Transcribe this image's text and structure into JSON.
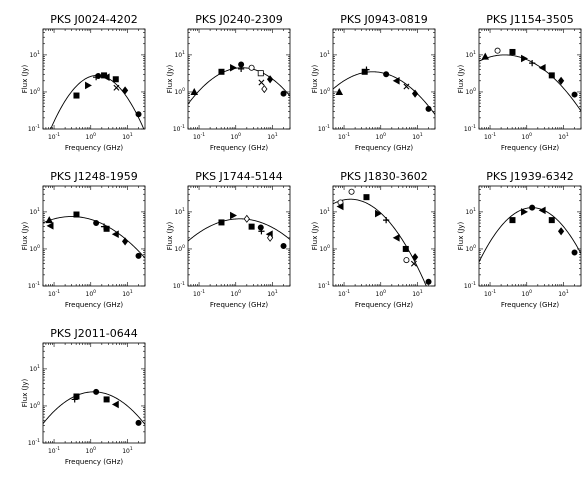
{
  "figure": {
    "xlabel": "Frequency (GHz)",
    "ylabel": "Flux (Jy)"
  },
  "chart_data": [
    {
      "type": "scatter",
      "title": "PKS J0024-4202",
      "xlabel": "Frequency (GHz)",
      "ylabel": "Flux (Jy)",
      "xscale": "log",
      "yscale": "log",
      "xlim": [
        0.05,
        30
      ],
      "ylim": [
        0.1,
        50
      ],
      "xticks": [
        "10^-1",
        "10^0",
        "10^1"
      ],
      "yticks": [
        "10^-1",
        "10^0",
        "10^1"
      ],
      "points": [
        {
          "x": 0.408,
          "y": 0.8,
          "marker": "square"
        },
        {
          "x": 0.843,
          "y": 1.5,
          "marker": "triangle-right"
        },
        {
          "x": 1.4,
          "y": 2.5,
          "marker": "plus"
        },
        {
          "x": 1.6,
          "y": 2.7,
          "marker": "circle"
        },
        {
          "x": 2.3,
          "y": 2.8,
          "marker": "square"
        },
        {
          "x": 2.7,
          "y": 2.5,
          "marker": "triangle-left"
        },
        {
          "x": 4.8,
          "y": 2.2,
          "marker": "square"
        },
        {
          "x": 5.0,
          "y": 1.3,
          "marker": "cross"
        },
        {
          "x": 8.6,
          "y": 1.1,
          "marker": "diamond"
        },
        {
          "x": 20,
          "y": 0.25,
          "marker": "circle"
        }
      ],
      "fit": {
        "peak_freq": 1.5,
        "peak_flux": 2.8,
        "curvature": 0.9
      }
    },
    {
      "type": "scatter",
      "title": "PKS J0240-2309",
      "xlabel": "Frequency (GHz)",
      "ylabel": "Flux (Jy)",
      "xscale": "log",
      "yscale": "log",
      "xlim": [
        0.05,
        30
      ],
      "ylim": [
        0.1,
        50
      ],
      "xticks": [
        "10^-1",
        "10^0",
        "10^1"
      ],
      "yticks": [
        "10^-1",
        "10^0",
        "10^1"
      ],
      "points": [
        {
          "x": 0.074,
          "y": 1.0,
          "marker": "triangle-up"
        },
        {
          "x": 0.408,
          "y": 3.5,
          "marker": "square"
        },
        {
          "x": 0.843,
          "y": 4.5,
          "marker": "triangle-right"
        },
        {
          "x": 1.4,
          "y": 5.5,
          "marker": "circle"
        },
        {
          "x": 1.4,
          "y": 4.2,
          "marker": "plus"
        },
        {
          "x": 2.7,
          "y": 4.5,
          "marker": "open-circle"
        },
        {
          "x": 4.8,
          "y": 3.2,
          "marker": "open-square"
        },
        {
          "x": 5.0,
          "y": 1.8,
          "marker": "cross"
        },
        {
          "x": 6.0,
          "y": 1.2,
          "marker": "open-diamond"
        },
        {
          "x": 8.6,
          "y": 2.2,
          "marker": "diamond"
        },
        {
          "x": 20,
          "y": 0.9,
          "marker": "circle"
        }
      ],
      "fit": {
        "peak_freq": 1.5,
        "peak_flux": 4.5,
        "curvature": 0.45
      }
    },
    {
      "type": "scatter",
      "title": "PKS J0943-0819",
      "xlabel": "Frequency (GHz)",
      "ylabel": "Flux (Jy)",
      "xscale": "log",
      "yscale": "log",
      "xlim": [
        0.05,
        30
      ],
      "ylim": [
        0.1,
        50
      ],
      "xticks": [
        "10^-1",
        "10^0",
        "10^1"
      ],
      "yticks": [
        "10^-1",
        "10^0",
        "10^1"
      ],
      "points": [
        {
          "x": 0.074,
          "y": 1.0,
          "marker": "triangle-up"
        },
        {
          "x": 0.365,
          "y": 3.5,
          "marker": "square"
        },
        {
          "x": 0.408,
          "y": 4.0,
          "marker": "plus"
        },
        {
          "x": 1.4,
          "y": 3.0,
          "marker": "circle"
        },
        {
          "x": 2.7,
          "y": 2.0,
          "marker": "triangle-left"
        },
        {
          "x": 5.0,
          "y": 1.4,
          "marker": "cross"
        },
        {
          "x": 8.6,
          "y": 0.9,
          "marker": "diamond"
        },
        {
          "x": 20,
          "y": 0.35,
          "marker": "circle"
        }
      ],
      "fit": {
        "peak_freq": 0.6,
        "peak_flux": 3.5,
        "curvature": 0.4
      }
    },
    {
      "type": "scatter",
      "title": "PKS J1154-3505",
      "xlabel": "Frequency (GHz)",
      "ylabel": "Flux (Jy)",
      "xscale": "log",
      "yscale": "log",
      "xlim": [
        0.05,
        30
      ],
      "ylim": [
        0.1,
        50
      ],
      "xticks": [
        "10^-1",
        "10^0",
        "10^1"
      ],
      "yticks": [
        "10^-1",
        "10^0",
        "10^1"
      ],
      "points": [
        {
          "x": 0.074,
          "y": 9.0,
          "marker": "triangle-up"
        },
        {
          "x": 0.16,
          "y": 13,
          "marker": "open-circle"
        },
        {
          "x": 0.408,
          "y": 12,
          "marker": "square"
        },
        {
          "x": 0.843,
          "y": 8,
          "marker": "triangle-right"
        },
        {
          "x": 1.4,
          "y": 6.0,
          "marker": "plus"
        },
        {
          "x": 2.7,
          "y": 4.5,
          "marker": "triangle-left"
        },
        {
          "x": 4.8,
          "y": 2.8,
          "marker": "square"
        },
        {
          "x": 8.6,
          "y": 2.0,
          "marker": "diamond"
        },
        {
          "x": 20,
          "y": 0.85,
          "marker": "circle"
        }
      ],
      "fit": {
        "peak_freq": 0.25,
        "peak_flux": 10,
        "curvature": 0.35
      }
    },
    {
      "type": "scatter",
      "title": "PKS J1248-1959",
      "xlabel": "Frequency (GHz)",
      "ylabel": "Flux (Jy)",
      "xscale": "log",
      "yscale": "log",
      "xlim": [
        0.05,
        30
      ],
      "ylim": [
        0.1,
        50
      ],
      "xticks": [
        "10^-1",
        "10^0",
        "10^1"
      ],
      "yticks": [
        "10^-1",
        "10^0",
        "10^1"
      ],
      "points": [
        {
          "x": 0.074,
          "y": 6.0,
          "marker": "triangle-up"
        },
        {
          "x": 0.08,
          "y": 4.2,
          "marker": "triangle-left"
        },
        {
          "x": 0.408,
          "y": 8.5,
          "marker": "square"
        },
        {
          "x": 1.4,
          "y": 5.0,
          "marker": "circle"
        },
        {
          "x": 2.3,
          "y": 4.0,
          "marker": "plus"
        },
        {
          "x": 2.7,
          "y": 3.5,
          "marker": "square"
        },
        {
          "x": 4.8,
          "y": 2.5,
          "marker": "triangle-left"
        },
        {
          "x": 8.6,
          "y": 1.6,
          "marker": "diamond"
        },
        {
          "x": 20,
          "y": 0.65,
          "marker": "circle"
        }
      ],
      "fit": {
        "peak_freq": 0.3,
        "peak_flux": 7.5,
        "curvature": 0.28
      }
    },
    {
      "type": "scatter",
      "title": "PKS J1744-5144",
      "xlabel": "Frequency (GHz)",
      "ylabel": "Flux (Jy)",
      "xscale": "log",
      "yscale": "log",
      "xlim": [
        0.05,
        30
      ],
      "ylim": [
        0.1,
        50
      ],
      "xticks": [
        "10^-1",
        "10^0",
        "10^1"
      ],
      "yticks": [
        "10^-1",
        "10^0",
        "10^1"
      ],
      "points": [
        {
          "x": 0.408,
          "y": 5.2,
          "marker": "square"
        },
        {
          "x": 0.843,
          "y": 8.0,
          "marker": "triangle-right"
        },
        {
          "x": 2.0,
          "y": 6.5,
          "marker": "open-diamond"
        },
        {
          "x": 2.7,
          "y": 4.0,
          "marker": "square"
        },
        {
          "x": 4.8,
          "y": 3.8,
          "marker": "circle"
        },
        {
          "x": 5.0,
          "y": 3.0,
          "marker": "plus"
        },
        {
          "x": 8.4,
          "y": 2.5,
          "marker": "triangle-left"
        },
        {
          "x": 8.6,
          "y": 2.0,
          "marker": "open-diamond"
        },
        {
          "x": 20,
          "y": 1.2,
          "marker": "circle"
        }
      ],
      "fit": {
        "peak_freq": 1.3,
        "peak_flux": 6.5,
        "curvature": 0.3
      }
    },
    {
      "type": "scatter",
      "title": "PKS J1830-3602",
      "xlabel": "Frequency (GHz)",
      "ylabel": "Flux (Jy)",
      "xscale": "log",
      "yscale": "log",
      "xlim": [
        0.05,
        30
      ],
      "ylim": [
        0.1,
        50
      ],
      "xticks": [
        "10^-1",
        "10^0",
        "10^1"
      ],
      "yticks": [
        "10^-1",
        "10^0",
        "10^1"
      ],
      "points": [
        {
          "x": 0.08,
          "y": 18,
          "marker": "open-circle"
        },
        {
          "x": 0.08,
          "y": 14,
          "marker": "triangle-left"
        },
        {
          "x": 0.16,
          "y": 35,
          "marker": "open-circle"
        },
        {
          "x": 0.408,
          "y": 25,
          "marker": "square"
        },
        {
          "x": 0.843,
          "y": 9.0,
          "marker": "triangle-right"
        },
        {
          "x": 1.4,
          "y": 6.0,
          "marker": "plus"
        },
        {
          "x": 2.7,
          "y": 2.0,
          "marker": "triangle-left"
        },
        {
          "x": 4.8,
          "y": 1.0,
          "marker": "square"
        },
        {
          "x": 5.0,
          "y": 0.5,
          "marker": "open-circle"
        },
        {
          "x": 8.0,
          "y": 0.4,
          "marker": "cross"
        },
        {
          "x": 8.6,
          "y": 0.6,
          "marker": "diamond"
        },
        {
          "x": 20,
          "y": 0.13,
          "marker": "circle"
        }
      ],
      "fit": {
        "peak_freq": 0.15,
        "peak_flux": 22,
        "curvature": 0.55
      }
    },
    {
      "type": "scatter",
      "title": "PKS J1939-6342",
      "xlabel": "Frequency (GHz)",
      "ylabel": "Flux (Jy)",
      "xscale": "log",
      "yscale": "log",
      "xlim": [
        0.05,
        30
      ],
      "ylim": [
        0.1,
        50
      ],
      "xticks": [
        "10^-1",
        "10^0",
        "10^1"
      ],
      "yticks": [
        "10^-1",
        "10^0",
        "10^1"
      ],
      "points": [
        {
          "x": 0.408,
          "y": 6.0,
          "marker": "square"
        },
        {
          "x": 0.843,
          "y": 10,
          "marker": "triangle-right"
        },
        {
          "x": 1.4,
          "y": 13,
          "marker": "circle"
        },
        {
          "x": 2.7,
          "y": 11,
          "marker": "triangle-left"
        },
        {
          "x": 4.8,
          "y": 6.0,
          "marker": "square"
        },
        {
          "x": 8.6,
          "y": 3.0,
          "marker": "diamond"
        },
        {
          "x": 20,
          "y": 0.8,
          "marker": "circle"
        }
      ],
      "fit": {
        "peak_freq": 1.4,
        "peak_flux": 13,
        "curvature": 0.7
      }
    },
    {
      "type": "scatter",
      "title": "PKS J2011-0644",
      "xlabel": "Frequency (GHz)",
      "ylabel": "Flux (Jy)",
      "xscale": "log",
      "yscale": "log",
      "xlim": [
        0.05,
        30
      ],
      "ylim": [
        0.1,
        50
      ],
      "xticks": [
        "10^-1",
        "10^0",
        "10^1"
      ],
      "yticks": [
        "10^-1",
        "10^0",
        "10^1"
      ],
      "points": [
        {
          "x": 0.365,
          "y": 1.5,
          "marker": "plus"
        },
        {
          "x": 0.408,
          "y": 1.8,
          "marker": "square"
        },
        {
          "x": 1.4,
          "y": 2.4,
          "marker": "circle"
        },
        {
          "x": 2.7,
          "y": 1.5,
          "marker": "square"
        },
        {
          "x": 4.8,
          "y": 1.1,
          "marker": "triangle-left"
        },
        {
          "x": 20,
          "y": 0.35,
          "marker": "circle"
        }
      ],
      "fit": {
        "peak_freq": 1.2,
        "peak_flux": 2.4,
        "curvature": 0.45
      }
    }
  ]
}
